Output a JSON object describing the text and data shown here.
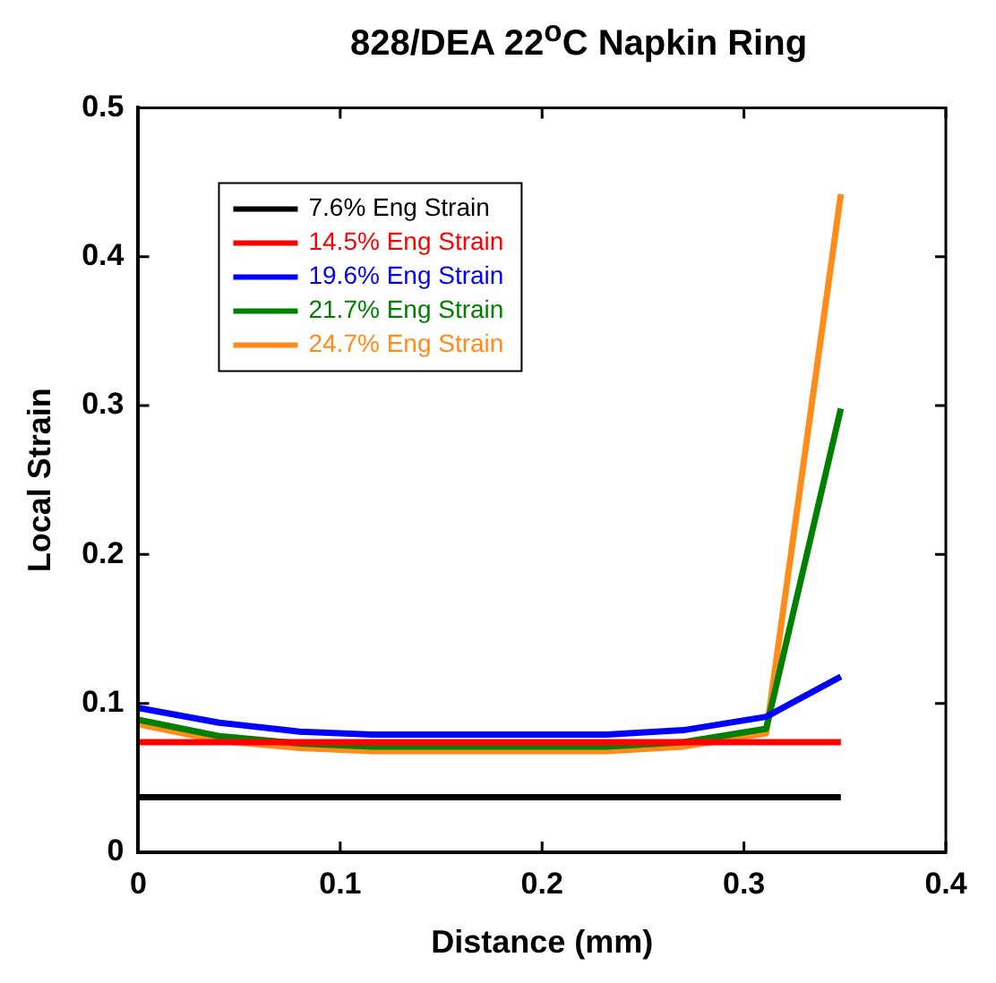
{
  "chart_data": {
    "type": "line",
    "title": "828/DEA 22$^{o}$C Napkin Ring",
    "xlabel": "Distance (mm)",
    "ylabel": "Local Strain",
    "x": [
      0,
      0.04,
      0.08,
      0.116,
      0.232,
      0.27,
      0.311,
      0.348
    ],
    "series": [
      {
        "name": "7.6% Eng Strain",
        "color": "#000000",
        "values": [
          0.037,
          0.037,
          0.037,
          0.037,
          0.037,
          0.037,
          0.037,
          0.037
        ]
      },
      {
        "name": "14.5% Eng Strain",
        "color": "#ff0000",
        "values": [
          0.074,
          0.074,
          0.074,
          0.074,
          0.074,
          0.074,
          0.074,
          0.074
        ]
      },
      {
        "name": "19.6% Eng Strain",
        "color": "#0000ff",
        "values": [
          0.097,
          0.087,
          0.081,
          0.079,
          0.079,
          0.082,
          0.091,
          0.118
        ]
      },
      {
        "name": "21.7% Eng Strain",
        "color": "#008000",
        "values": [
          0.089,
          0.078,
          0.073,
          0.071,
          0.071,
          0.074,
          0.083,
          0.298
        ]
      },
      {
        "name": "24.7% Eng Strain",
        "color": "#ff8c1a",
        "values": [
          0.086,
          0.075,
          0.07,
          0.068,
          0.068,
          0.071,
          0.08,
          0.442
        ]
      }
    ],
    "xlim": [
      0,
      0.4
    ],
    "xticks": [
      0,
      0.1,
      0.2,
      0.3,
      0.4
    ],
    "ylim": [
      0,
      0.5
    ],
    "yticks": [
      0,
      0.1,
      0.2,
      0.3,
      0.4,
      0.5
    ],
    "grid": false,
    "legend": "top left",
    "marker": "none",
    "line_style": "solid"
  }
}
